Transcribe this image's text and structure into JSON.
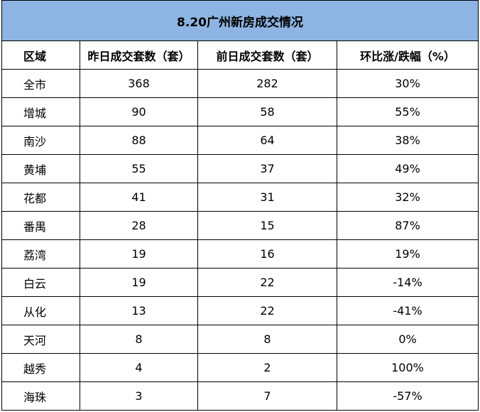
{
  "table": {
    "title": "8.20广州新房成交情况",
    "headers": [
      "区域",
      "昨日成交套数（套）",
      "前日成交套数（套）",
      "环比涨/跌幅（%）"
    ],
    "rows": [
      [
        "全市",
        "368",
        "282",
        "30%"
      ],
      [
        "增城",
        "90",
        "58",
        "55%"
      ],
      [
        "南沙",
        "88",
        "64",
        "38%"
      ],
      [
        "黄埔",
        "55",
        "37",
        "49%"
      ],
      [
        "花都",
        "41",
        "31",
        "32%"
      ],
      [
        "番禺",
        "28",
        "15",
        "87%"
      ],
      [
        "荔湾",
        "19",
        "16",
        "19%"
      ],
      [
        "白云",
        "19",
        "22",
        "-14%"
      ],
      [
        "从化",
        "13",
        "22",
        "-41%"
      ],
      [
        "天河",
        "8",
        "8",
        "0%"
      ],
      [
        "越秀",
        "4",
        "2",
        "100%"
      ],
      [
        "海珠",
        "3",
        "7",
        "-57%"
      ]
    ]
  },
  "colors": {
    "title_background": "#8db4e2",
    "border": "#000000",
    "text": "#000000"
  }
}
